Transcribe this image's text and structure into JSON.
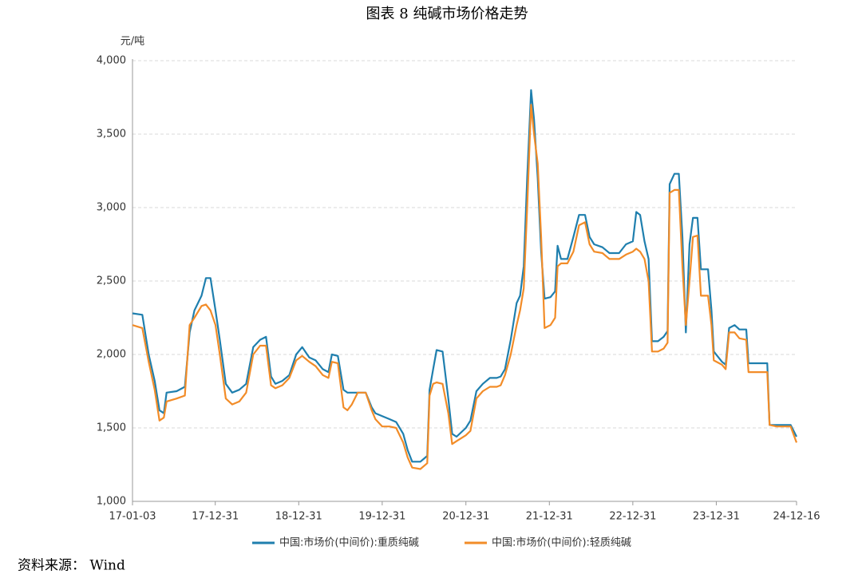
{
  "chart_data": {
    "type": "line",
    "title": "图表 8   纯碱市场价格走势",
    "y_label": "元/吨",
    "source": "资料来源： Wind",
    "x": [
      "17-01-03",
      "17-02-15",
      "17-03-15",
      "17-04-10",
      "17-05-01",
      "17-05-20",
      "17-06-01",
      "17-07-15",
      "17-08-20",
      "17-09-10",
      "17-10-01",
      "17-11-01",
      "17-11-20",
      "17-12-10",
      "18-01-01",
      "18-01-20",
      "18-02-15",
      "18-03-15",
      "18-04-15",
      "18-05-15",
      "18-06-15",
      "18-07-15",
      "18-08-10",
      "18-09-01",
      "18-09-20",
      "18-10-20",
      "18-11-20",
      "18-12-20",
      "19-01-15",
      "19-02-15",
      "19-03-15",
      "19-04-15",
      "19-05-10",
      "19-05-25",
      "19-06-20",
      "19-07-15",
      "19-08-01",
      "19-08-20",
      "19-09-15",
      "19-10-20",
      "19-11-15",
      "19-12-01",
      "19-12-31",
      "20-02-01",
      "20-03-01",
      "20-04-01",
      "20-04-20",
      "20-05-10",
      "20-06-15",
      "20-07-15",
      "20-07-25",
      "20-08-10",
      "20-08-25",
      "20-09-20",
      "20-10-15",
      "20-11-01",
      "20-11-20",
      "20-12-31",
      "21-01-20",
      "21-02-15",
      "21-03-15",
      "21-04-15",
      "21-05-15",
      "21-06-01",
      "21-06-20",
      "21-07-15",
      "21-08-10",
      "21-08-25",
      "21-09-10",
      "21-09-25",
      "21-10-12",
      "21-10-25",
      "21-11-10",
      "21-11-25",
      "21-12-10",
      "22-01-05",
      "22-01-25",
      "22-02-05",
      "22-02-20",
      "22-03-20",
      "22-04-15",
      "22-05-10",
      "22-06-05",
      "22-06-25",
      "22-07-15",
      "22-08-20",
      "22-09-20",
      "22-11-01",
      "22-12-01",
      "22-12-31",
      "23-01-15",
      "23-02-01",
      "23-02-20",
      "23-03-10",
      "23-03-25",
      "23-04-20",
      "23-05-15",
      "23-06-01",
      "23-06-10",
      "23-07-01",
      "23-07-20",
      "23-08-05",
      "23-08-20",
      "23-09-05",
      "23-09-20",
      "23-10-10",
      "23-10-25",
      "23-11-25",
      "23-12-10",
      "23-12-20",
      "24-01-25",
      "24-02-10",
      "24-02-25",
      "24-03-20",
      "24-04-10",
      "24-05-10",
      "24-05-20",
      "24-08-10",
      "24-08-20",
      "24-09-20",
      "24-11-20",
      "24-12-16"
    ],
    "series": [
      {
        "name": "中国:市场价(中间价):重质纯碱",
        "color": "#1f7fae",
        "values": [
          2280,
          2270,
          2000,
          1820,
          1620,
          1600,
          1740,
          1750,
          1780,
          2150,
          2300,
          2400,
          2520,
          2520,
          2300,
          2100,
          1800,
          1740,
          1760,
          1800,
          2050,
          2100,
          2120,
          1850,
          1800,
          1820,
          1860,
          2000,
          2050,
          1980,
          1960,
          1900,
          1880,
          2000,
          1990,
          1760,
          1740,
          1740,
          1740,
          1740,
          1640,
          1600,
          1580,
          1560,
          1540,
          1460,
          1350,
          1270,
          1270,
          1310,
          1760,
          1900,
          2030,
          2020,
          1700,
          1460,
          1440,
          1500,
          1550,
          1750,
          1800,
          1840,
          1840,
          1850,
          1900,
          2100,
          2350,
          2400,
          2600,
          3200,
          3800,
          3600,
          3200,
          2700,
          2380,
          2390,
          2430,
          2740,
          2650,
          2650,
          2800,
          2950,
          2950,
          2800,
          2750,
          2730,
          2690,
          2690,
          2750,
          2770,
          2970,
          2950,
          2770,
          2650,
          2090,
          2090,
          2120,
          2160,
          3160,
          3230,
          3230,
          2800,
          2150,
          2750,
          2930,
          2930,
          2580,
          2580,
          2300,
          2020,
          1950,
          1930,
          2180,
          2200,
          2170,
          2170,
          1940,
          1940,
          1520,
          1520,
          1520,
          1440
        ]
      },
      {
        "name": "中国:市场价(中间价):轻质纯碱",
        "color": "#f28c28",
        "values": [
          2200,
          2180,
          1950,
          1760,
          1550,
          1570,
          1680,
          1700,
          1720,
          2200,
          2250,
          2330,
          2340,
          2300,
          2200,
          2000,
          1700,
          1660,
          1680,
          1740,
          2000,
          2060,
          2060,
          1790,
          1770,
          1790,
          1840,
          1960,
          1990,
          1950,
          1920,
          1860,
          1840,
          1950,
          1940,
          1640,
          1620,
          1660,
          1740,
          1740,
          1620,
          1560,
          1510,
          1510,
          1500,
          1400,
          1300,
          1230,
          1220,
          1260,
          1720,
          1800,
          1810,
          1800,
          1600,
          1390,
          1410,
          1450,
          1480,
          1700,
          1750,
          1780,
          1780,
          1790,
          1860,
          2000,
          2200,
          2300,
          2450,
          3000,
          3700,
          3500,
          3300,
          2800,
          2180,
          2200,
          2250,
          2600,
          2620,
          2620,
          2700,
          2880,
          2900,
          2750,
          2700,
          2690,
          2650,
          2650,
          2680,
          2700,
          2720,
          2700,
          2650,
          2500,
          2020,
          2020,
          2040,
          2080,
          3100,
          3120,
          3120,
          2600,
          2200,
          2500,
          2800,
          2810,
          2400,
          2400,
          2200,
          1960,
          1930,
          1900,
          2150,
          2150,
          2110,
          2100,
          1880,
          1880,
          1520,
          1510,
          1510,
          1400
        ]
      }
    ],
    "xlim": [
      "17-01-03",
      "24-12-16"
    ],
    "xticks": [
      "17-01-03",
      "17-12-31",
      "18-12-31",
      "19-12-31",
      "20-12-31",
      "21-12-31",
      "22-12-31",
      "23-12-31",
      "24-12-16"
    ],
    "ylim": [
      1000,
      4000
    ],
    "yticks": [
      {
        "value": 1000,
        "label": "1,000"
      },
      {
        "value": 1500,
        "label": "1,500"
      },
      {
        "value": 2000,
        "label": "2,000"
      },
      {
        "value": 2500,
        "label": "2,500"
      },
      {
        "value": 3000,
        "label": "3,000"
      },
      {
        "value": 3500,
        "label": "3,500"
      },
      {
        "value": 4000,
        "label": "4,000"
      }
    ],
    "grid": true,
    "legend": "bottom"
  }
}
